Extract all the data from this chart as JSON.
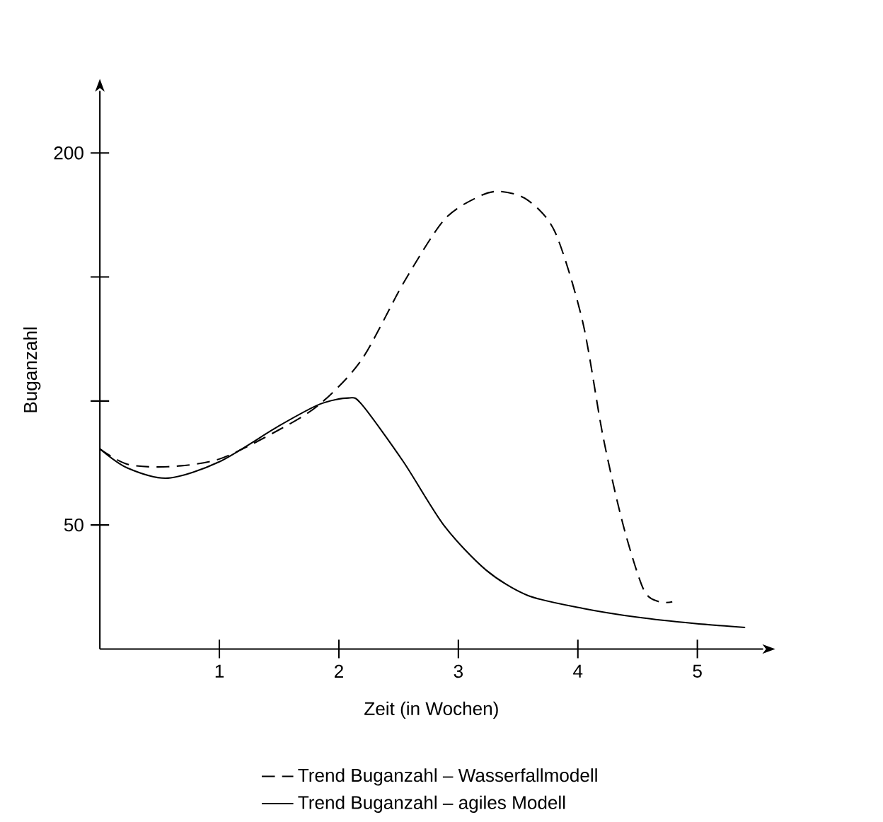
{
  "chart_data": {
    "type": "line",
    "xlabel": "Zeit (in Wochen)",
    "ylabel": "Buganzahl",
    "xlim": [
      0,
      5.55
    ],
    "ylim": [
      0,
      225
    ],
    "xticks": [
      1,
      2,
      3,
      4,
      5
    ],
    "yticks": [
      50,
      {
        "value": 100,
        "label": null
      },
      {
        "value": 150,
        "label": null
      },
      200
    ],
    "grid": false,
    "legend": "bottom",
    "marker": "none",
    "series": [
      {
        "name": "Trend Buganzahl – Wasserfallmodell",
        "color": "#000000",
        "line_style": "dashed",
        "x": [
          0,
          0.23,
          0.57,
          1,
          1.5,
          1.84,
          2.19,
          2.54,
          2.88,
          3.17,
          3.35,
          3.58,
          3.81,
          4.04,
          4.21,
          4.38,
          4.55,
          4.68,
          4.79
        ],
        "values": [
          80.7,
          74.5,
          73.5,
          76.6,
          88.4,
          98.7,
          116.6,
          147.5,
          173,
          182.4,
          184.5,
          181,
          168,
          132,
          85.8,
          49.8,
          24,
          19,
          19
        ]
      },
      {
        "name": "Trend Buganzahl – agiles Modell",
        "color": "#000000",
        "line_style": "solid",
        "x": [
          0,
          0.23,
          0.57,
          1,
          1.5,
          1.84,
          2.08,
          2.19,
          2.54,
          2.88,
          3.23,
          3.58,
          4.04,
          4.5,
          4.97,
          5.4
        ],
        "values": [
          80.7,
          73,
          68.9,
          75.5,
          90,
          98.7,
          101.2,
          98.7,
          75.5,
          49.8,
          31.9,
          21.6,
          16.4,
          12.8,
          10.3,
          8.7
        ]
      }
    ]
  }
}
